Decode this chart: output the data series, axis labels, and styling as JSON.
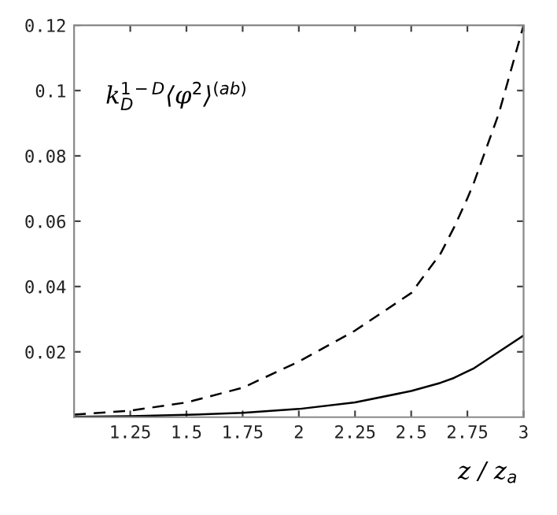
{
  "chart_data": {
    "type": "line",
    "ylabel": "k$^{1−D}$$_{D}$⟨φ$^{2}$⟩$^{(ab)}$",
    "xlabel": "z / z$_{a}$",
    "x": [
      1,
      1.25,
      1.5,
      1.75,
      2,
      2.25,
      2.5,
      2.63,
      2.69,
      2.75,
      2.78,
      2.89,
      3
    ],
    "series": [
      {
        "color": "#000000",
        "line_style": "solid",
        "values": [
          0.0001,
          0.0003,
          0.0007,
          0.0013,
          0.0025,
          0.0045,
          0.008,
          0.0105,
          0.012,
          0.014,
          0.015,
          0.02,
          0.025
        ]
      },
      {
        "color": "#000000",
        "line_style": "dashed",
        "values": [
          0.0008,
          0.002,
          0.0045,
          0.009,
          0.017,
          0.0265,
          0.038,
          0.05,
          0.058,
          0.067,
          0.072,
          0.093,
          0.12
        ]
      }
    ],
    "xlim": [
      1,
      3
    ],
    "xticks": [
      1.25,
      1.5,
      1.75,
      2,
      2.25,
      2.5,
      2.75,
      3
    ],
    "ylim": [
      0,
      0.12
    ],
    "yticks": [
      0.02,
      0.04,
      0.06,
      0.08,
      0.1,
      0.12
    ],
    "grid": false,
    "legend": false,
    "marker": "none"
  }
}
